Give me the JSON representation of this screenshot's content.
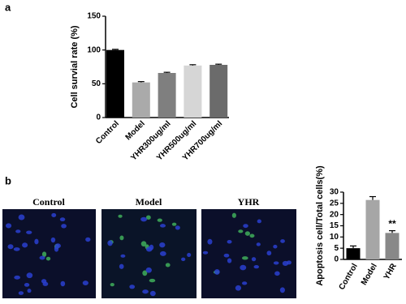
{
  "chart_data": [
    {
      "type": "bar",
      "panel": "a",
      "ylabel": "Cell survial rate (%)",
      "categories": [
        "Control",
        "Model",
        "YHR300ug/ml",
        "YHR500ug/ml",
        "YHR700ug/ml"
      ],
      "values": [
        100,
        52,
        66,
        77,
        78
      ],
      "errors": [
        1,
        1.2,
        1,
        1.2,
        1
      ],
      "colors": [
        "#000000",
        "#aaaaaa",
        "#7f7f7f",
        "#d6d6d6",
        "#6b6b6b"
      ],
      "ylim": [
        0,
        150
      ],
      "yticks": [
        0,
        50,
        100,
        150
      ]
    },
    {
      "type": "bar",
      "panel": "b",
      "ylabel": "Apoptosis cell/Total cells(%)",
      "categories": [
        "Control",
        "Model",
        "YHR"
      ],
      "values": [
        5,
        26.5,
        11.8
      ],
      "errors": [
        1,
        1.5,
        1
      ],
      "colors": [
        "#000000",
        "#a6a6a6",
        "#888888"
      ],
      "annotations": [
        {
          "category": "YHR",
          "text": "**"
        }
      ],
      "ylim": [
        0,
        30
      ],
      "yticks": [
        0,
        5,
        10,
        15,
        20,
        25,
        30
      ]
    }
  ],
  "images": {
    "labels": [
      "Control",
      "Model",
      "YHR"
    ]
  }
}
